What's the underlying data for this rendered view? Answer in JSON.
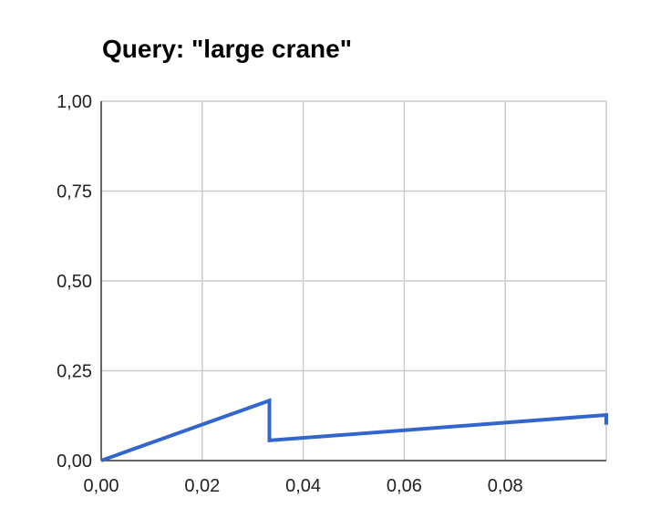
{
  "chart_data": {
    "type": "line",
    "title": "Query: \"large crane\"",
    "xlabel": "",
    "ylabel": "",
    "xlim": [
      0,
      0.1
    ],
    "ylim": [
      0,
      1
    ],
    "x_ticks": [
      "0,00",
      "0,02",
      "0,04",
      "0,06",
      "0,08"
    ],
    "y_ticks": [
      "0,00",
      "0,25",
      "0,50",
      "0,75",
      "1,00"
    ],
    "grid": true,
    "legend": "none",
    "series": [
      {
        "color": "#3366cc",
        "points": [
          [
            0.0,
            0.0
          ],
          [
            0.0333,
            0.167
          ],
          [
            0.0333,
            0.056
          ],
          [
            0.1,
            0.127
          ],
          [
            0.1,
            0.1
          ]
        ]
      }
    ]
  }
}
